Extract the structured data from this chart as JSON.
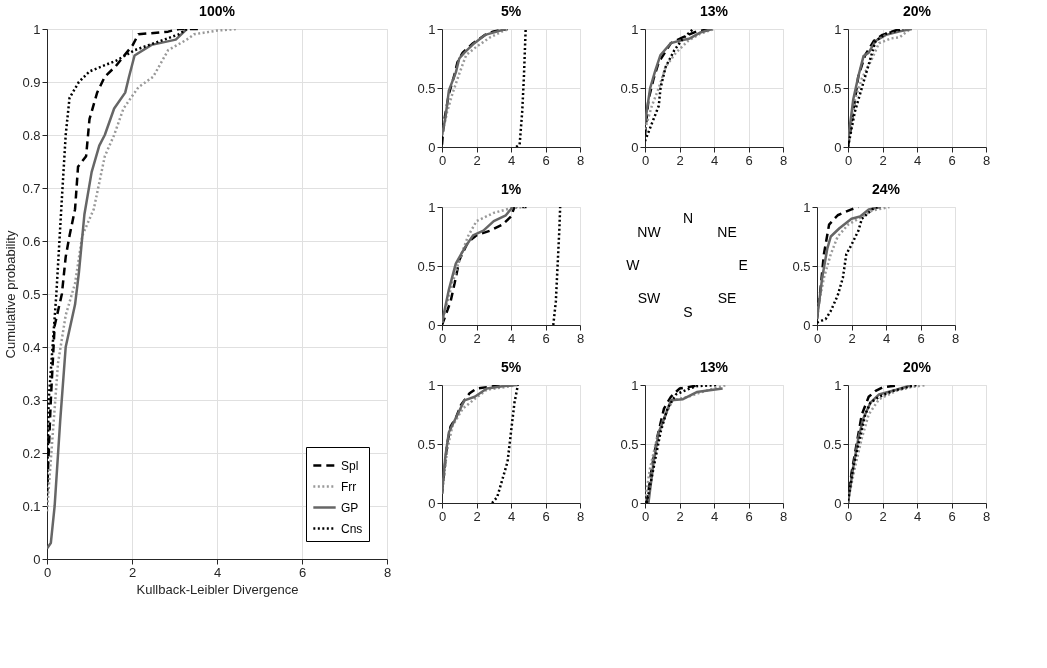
{
  "chart_data": [
    {
      "type": "line",
      "title": "100%",
      "xlabel": "Kullback-Leibler Divergence",
      "ylabel": "Cumulative probability",
      "xlim": [
        0,
        8
      ],
      "xticks": [
        0,
        2,
        4,
        6,
        8
      ],
      "ylim": [
        0,
        1
      ],
      "yticks": [
        0,
        0.1,
        0.2,
        0.3,
        0.4,
        0.5,
        0.6,
        0.7,
        0.8,
        0.9,
        1
      ],
      "grid": true,
      "legend": "bottom right",
      "series": [
        {
          "name": "Spl",
          "color": "#000000",
          "line_style": "dashed",
          "x": [
            0,
            0.09,
            0.18,
            0.35,
            0.44,
            0.53,
            0.66,
            0.73,
            0.92,
            1.0,
            1.18,
            1.36,
            1.62,
            2.02,
            2.15,
            2.85,
            3.1,
            3.6
          ],
          "values": [
            0.12,
            0.3,
            0.44,
            0.5,
            0.57,
            0.61,
            0.66,
            0.74,
            0.76,
            0.83,
            0.88,
            0.91,
            0.93,
            0.97,
            0.99,
            0.995,
            1,
            1
          ]
        },
        {
          "name": "Frr",
          "color": "#999999",
          "line_style": "dotted",
          "x": [
            0,
            0.13,
            0.26,
            0.44,
            0.66,
            0.83,
            1.1,
            1.36,
            1.58,
            1.8,
            2.15,
            2.5,
            2.85,
            3.29,
            3.46,
            4.0,
            4.47
          ],
          "values": [
            0.09,
            0.23,
            0.37,
            0.46,
            0.52,
            0.61,
            0.66,
            0.76,
            0.8,
            0.85,
            0.89,
            0.91,
            0.96,
            0.98,
            0.99,
            0.997,
            1
          ]
        },
        {
          "name": "GP",
          "color": "#666666",
          "line_style": "solid",
          "x": [
            0,
            0.09,
            0.18,
            0.31,
            0.44,
            0.66,
            0.75,
            0.88,
            1.05,
            1.23,
            1.36,
            1.58,
            1.84,
            1.93,
            2.06,
            2.46,
            3.03,
            3.16,
            3.29
          ],
          "values": [
            0.02,
            0.03,
            0.1,
            0.26,
            0.4,
            0.48,
            0.54,
            0.65,
            0.73,
            0.78,
            0.8,
            0.85,
            0.88,
            0.91,
            0.95,
            0.97,
            0.98,
            0.99,
            1
          ]
        },
        {
          "name": "Cns",
          "color": "#000000",
          "line_style": "dotted",
          "x": [
            0,
            0.04,
            0.13,
            0.22,
            0.35,
            0.44,
            0.53,
            0.75,
            1.0,
            1.62,
            2.06,
            2.76,
            3.1,
            3.29
          ],
          "values": [
            0.13,
            0.3,
            0.4,
            0.5,
            0.68,
            0.8,
            0.87,
            0.9,
            0.92,
            0.94,
            0.96,
            0.98,
            0.99,
            1
          ]
        }
      ]
    },
    {
      "type": "line",
      "title": "5%",
      "xlim": [
        0,
        8
      ],
      "xticks": [
        0,
        2,
        4,
        6,
        8
      ],
      "ylim": [
        0,
        1
      ],
      "yticks": [
        0,
        0.5,
        1
      ],
      "grid": true,
      "series": [
        {
          "color": "#000000",
          "line_style": "dashed",
          "x": [
            0,
            0.1,
            0.4,
            0.7,
            0.9,
            1.2,
            1.8,
            2.5,
            3.0,
            3.8
          ],
          "values": [
            0.02,
            0.2,
            0.45,
            0.6,
            0.72,
            0.8,
            0.88,
            0.95,
            0.98,
            1
          ]
        },
        {
          "color": "#999999",
          "line_style": "dotted",
          "x": [
            0,
            0.3,
            0.6,
            1.0,
            1.4,
            2.0,
            2.8,
            3.5,
            3.9
          ],
          "values": [
            0.1,
            0.3,
            0.45,
            0.62,
            0.78,
            0.85,
            0.93,
            0.98,
            1
          ]
        },
        {
          "color": "#666666",
          "line_style": "solid",
          "x": [
            0,
            0.2,
            0.4,
            0.8,
            1.0,
            1.3,
            1.8,
            2.5,
            3.7
          ],
          "values": [
            0.1,
            0.25,
            0.48,
            0.63,
            0.75,
            0.8,
            0.87,
            0.95,
            1
          ]
        },
        {
          "color": "#000000",
          "line_style": "dotted",
          "x": [
            4.3,
            4.5,
            4.65,
            4.75,
            4.85
          ],
          "values": [
            0,
            0.02,
            0.3,
            0.6,
            1
          ]
        }
      ]
    },
    {
      "type": "line",
      "title": "13%",
      "xlim": [
        0,
        8
      ],
      "xticks": [
        0,
        2,
        4,
        6,
        8
      ],
      "ylim": [
        0,
        1
      ],
      "yticks": [
        0,
        0.5,
        1
      ],
      "grid": true,
      "series": [
        {
          "color": "#000000",
          "line_style": "dashed",
          "x": [
            0,
            0.2,
            0.5,
            0.8,
            1.5,
            2.5,
            3.0,
            3.8
          ],
          "values": [
            0.1,
            0.4,
            0.58,
            0.72,
            0.88,
            0.95,
            0.98,
            1
          ]
        },
        {
          "color": "#999999",
          "line_style": "dotted",
          "x": [
            0,
            0.4,
            0.8,
            1.2,
            1.8,
            2.5,
            3.2,
            4.0
          ],
          "values": [
            0.15,
            0.35,
            0.5,
            0.68,
            0.8,
            0.9,
            0.96,
            1
          ]
        },
        {
          "color": "#666666",
          "line_style": "solid",
          "x": [
            0,
            0.3,
            0.6,
            0.9,
            1.5,
            2.0,
            2.6,
            3.2,
            3.9
          ],
          "values": [
            0.2,
            0.5,
            0.65,
            0.78,
            0.88,
            0.9,
            0.92,
            0.97,
            1
          ]
        },
        {
          "color": "#000000",
          "line_style": "dotted",
          "x": [
            0,
            0.4,
            0.8,
            0.9,
            1.2,
            1.7,
            2.2,
            2.8
          ],
          "values": [
            0.05,
            0.2,
            0.35,
            0.5,
            0.68,
            0.82,
            0.92,
            1
          ]
        }
      ]
    },
    {
      "type": "line",
      "title": "20%",
      "xlim": [
        0,
        8
      ],
      "xticks": [
        0,
        2,
        4,
        6,
        8
      ],
      "ylim": [
        0,
        1
      ],
      "yticks": [
        0,
        0.5,
        1
      ],
      "grid": true,
      "series": [
        {
          "color": "#000000",
          "line_style": "dashed",
          "x": [
            0,
            0.3,
            0.6,
            1.0,
            1.5,
            2.0,
            3.0
          ],
          "values": [
            0,
            0.3,
            0.6,
            0.78,
            0.9,
            0.95,
            1
          ]
        },
        {
          "color": "#999999",
          "line_style": "dotted",
          "x": [
            0,
            0.4,
            0.8,
            1.3,
            1.8,
            2.5,
            3.0,
            3.6
          ],
          "values": [
            0.05,
            0.4,
            0.58,
            0.72,
            0.88,
            0.92,
            0.93,
            1
          ]
        },
        {
          "color": "#666666",
          "line_style": "solid",
          "x": [
            0,
            0.3,
            0.6,
            0.9,
            1.2,
            1.6,
            2.2,
            3.0,
            3.7
          ],
          "values": [
            0.05,
            0.4,
            0.6,
            0.77,
            0.8,
            0.9,
            0.95,
            0.98,
            1
          ]
        },
        {
          "color": "#000000",
          "line_style": "dotted",
          "x": [
            0,
            0.4,
            0.8,
            1.2,
            1.6,
            2.2,
            3.2
          ],
          "values": [
            0,
            0.3,
            0.5,
            0.7,
            0.9,
            0.96,
            1
          ]
        }
      ]
    },
    {
      "type": "line",
      "title": "1%",
      "xlim": [
        0,
        8
      ],
      "xticks": [
        0,
        2,
        4,
        6,
        8
      ],
      "ylim": [
        0,
        1
      ],
      "yticks": [
        0,
        0.5,
        1
      ],
      "grid": true,
      "series": [
        {
          "color": "#000000",
          "line_style": "dashed",
          "x": [
            0,
            0.5,
            0.8,
            1.0,
            1.5,
            2.0,
            2.8,
            3.5,
            4.0,
            4.2,
            4.9
          ],
          "values": [
            0,
            0.2,
            0.4,
            0.55,
            0.7,
            0.76,
            0.8,
            0.85,
            0.92,
            1,
            1
          ]
        },
        {
          "color": "#999999",
          "line_style": "dotted",
          "x": [
            0,
            0.5,
            1.0,
            1.5,
            2.0,
            3.0,
            4.0,
            4.8
          ],
          "values": [
            0.02,
            0.3,
            0.55,
            0.75,
            0.88,
            0.95,
            0.99,
            1
          ]
        },
        {
          "color": "#666666",
          "line_style": "solid",
          "x": [
            0,
            0.4,
            0.8,
            1.3,
            1.8,
            2.4,
            3.0,
            3.7,
            4.1
          ],
          "values": [
            0.02,
            0.3,
            0.52,
            0.65,
            0.76,
            0.8,
            0.88,
            0.93,
            1
          ]
        },
        {
          "color": "#000000",
          "line_style": "dotted",
          "x": [
            6.45,
            6.6,
            6.7,
            6.8,
            6.85
          ],
          "values": [
            0,
            0.2,
            0.5,
            0.8,
            1
          ]
        }
      ]
    },
    {
      "type": "other",
      "annotations": [
        "N",
        "NE",
        "E",
        "SE",
        "S",
        "SW",
        "W",
        "NW"
      ]
    },
    {
      "type": "line",
      "title": "24%",
      "xlim": [
        0,
        8
      ],
      "xticks": [
        0,
        2,
        4,
        6,
        8
      ],
      "ylim": [
        0,
        1
      ],
      "yticks": [
        0,
        0.5,
        1
      ],
      "grid": true,
      "series": [
        {
          "color": "#000000",
          "line_style": "dashed",
          "x": [
            0,
            0.2,
            0.4,
            0.7,
            1.2,
            2.0,
            2.4
          ],
          "values": [
            0.05,
            0.3,
            0.6,
            0.85,
            0.93,
            0.98,
            1
          ]
        },
        {
          "color": "#999999",
          "line_style": "dotted",
          "x": [
            0,
            0.4,
            0.8,
            1.2,
            1.8,
            2.4,
            3.2,
            4.2
          ],
          "values": [
            0.1,
            0.4,
            0.6,
            0.75,
            0.85,
            0.9,
            0.97,
            1
          ]
        },
        {
          "color": "#666666",
          "line_style": "solid",
          "x": [
            0,
            0.3,
            0.6,
            0.8,
            1.3,
            2.0,
            2.5,
            3.0,
            3.7
          ],
          "values": [
            0.05,
            0.4,
            0.65,
            0.75,
            0.82,
            0.9,
            0.92,
            0.98,
            1
          ]
        },
        {
          "color": "#000000",
          "line_style": "dotted",
          "x": [
            0,
            0.5,
            0.8,
            1.2,
            1.5,
            1.7,
            2.0,
            2.4,
            2.6,
            3.2,
            3.5
          ],
          "values": [
            0.02,
            0.05,
            0.12,
            0.25,
            0.4,
            0.6,
            0.68,
            0.8,
            0.9,
            0.98,
            1
          ]
        }
      ]
    },
    {
      "type": "line",
      "title": "5%",
      "xlim": [
        0,
        8
      ],
      "xticks": [
        0,
        2,
        4,
        6,
        8
      ],
      "ylim": [
        0,
        1
      ],
      "yticks": [
        0,
        0.5,
        1
      ],
      "grid": true,
      "series": [
        {
          "color": "#000000",
          "line_style": "dashed",
          "x": [
            0,
            0.3,
            0.5,
            0.8,
            1.1,
            1.6,
            2.0,
            3.0,
            4.2
          ],
          "values": [
            0.08,
            0.5,
            0.65,
            0.72,
            0.83,
            0.93,
            0.97,
            0.99,
            1
          ]
        },
        {
          "color": "#999999",
          "line_style": "dotted",
          "x": [
            0,
            0.3,
            0.6,
            1.2,
            1.8,
            2.6,
            4.0,
            4.4
          ],
          "values": [
            0.08,
            0.45,
            0.65,
            0.8,
            0.87,
            0.96,
            0.99,
            1
          ]
        },
        {
          "color": "#666666",
          "line_style": "solid",
          "x": [
            0,
            0.2,
            0.4,
            0.8,
            1.3,
            1.9,
            2.6,
            3.5,
            4.3
          ],
          "values": [
            0.08,
            0.4,
            0.6,
            0.72,
            0.87,
            0.9,
            0.97,
            0.99,
            1
          ]
        },
        {
          "color": "#000000",
          "line_style": "dotted",
          "x": [
            2.9,
            3.2,
            3.5,
            3.8,
            4.0,
            4.2,
            4.4
          ],
          "values": [
            0,
            0.05,
            0.2,
            0.35,
            0.6,
            0.85,
            1
          ]
        }
      ]
    },
    {
      "type": "line",
      "title": "13%",
      "xlim": [
        0,
        8
      ],
      "xticks": [
        0,
        2,
        4,
        6,
        8
      ],
      "ylim": [
        0,
        1
      ],
      "yticks": [
        0,
        0.5,
        1
      ],
      "grid": true,
      "series": [
        {
          "color": "#000000",
          "line_style": "dashed",
          "x": [
            0.1,
            0.4,
            0.7,
            1.1,
            1.5,
            2.0,
            2.8,
            3.2
          ],
          "values": [
            0,
            0.3,
            0.55,
            0.8,
            0.9,
            0.97,
            0.99,
            1
          ]
        },
        {
          "color": "#999999",
          "line_style": "dotted",
          "x": [
            0,
            0.3,
            0.7,
            1.1,
            1.6,
            2.5,
            3.5,
            4.7
          ],
          "values": [
            0.02,
            0.3,
            0.55,
            0.72,
            0.87,
            0.9,
            0.95,
            1
          ]
        },
        {
          "color": "#666666",
          "line_style": "solid",
          "x": [
            0.2,
            0.5,
            0.8,
            1.2,
            1.5,
            2.2,
            3.0,
            4.5
          ],
          "values": [
            0,
            0.35,
            0.6,
            0.75,
            0.87,
            0.88,
            0.94,
            0.97
          ]
        },
        {
          "color": "#000000",
          "line_style": "dotted",
          "x": [
            0.1,
            0.5,
            0.9,
            1.3,
            1.8,
            2.6,
            3.0,
            4.2
          ],
          "values": [
            0,
            0.3,
            0.6,
            0.8,
            0.92,
            0.97,
            0.99,
            1
          ]
        }
      ]
    },
    {
      "type": "line",
      "title": "20%",
      "xlim": [
        0,
        8
      ],
      "xticks": [
        0,
        2,
        4,
        6,
        8
      ],
      "ylim": [
        0,
        1
      ],
      "yticks": [
        0,
        0.5,
        1
      ],
      "grid": true,
      "series": [
        {
          "color": "#000000",
          "line_style": "dashed",
          "x": [
            0,
            0.2,
            0.5,
            0.8,
            1.2,
            1.6,
            2.0,
            3.0
          ],
          "values": [
            0,
            0.25,
            0.5,
            0.75,
            0.9,
            0.95,
            0.98,
            1
          ]
        },
        {
          "color": "#999999",
          "line_style": "dotted",
          "x": [
            0,
            0.4,
            0.8,
            1.2,
            1.8,
            2.8,
            3.6,
            4.5
          ],
          "values": [
            0.02,
            0.3,
            0.55,
            0.75,
            0.88,
            0.95,
            0.98,
            1
          ]
        },
        {
          "color": "#666666",
          "line_style": "solid",
          "x": [
            0,
            0.3,
            0.6,
            0.9,
            1.3,
            1.8,
            2.8,
            3.7
          ],
          "values": [
            0,
            0.3,
            0.55,
            0.72,
            0.85,
            0.92,
            0.96,
            1
          ]
        },
        {
          "color": "#000000",
          "line_style": "dotted",
          "x": [
            0,
            0.3,
            0.6,
            1.0,
            1.3,
            1.8,
            2.6,
            3.4,
            4.0
          ],
          "values": [
            0.02,
            0.3,
            0.5,
            0.75,
            0.85,
            0.9,
            0.95,
            0.98,
            1
          ]
        }
      ]
    }
  ]
}
